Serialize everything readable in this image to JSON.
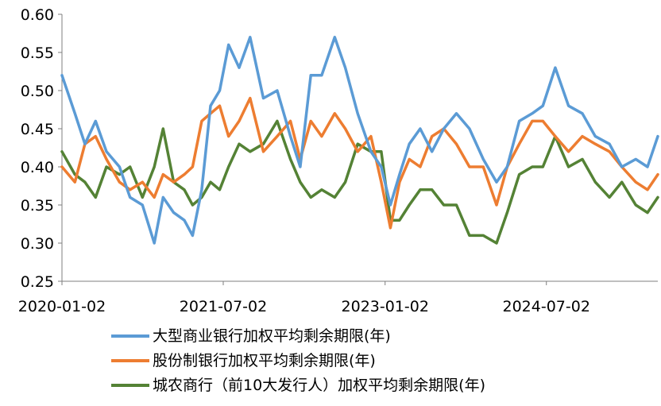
{
  "chart_data": {
    "type": "line",
    "title": "",
    "xlabel": "",
    "ylabel": "",
    "ylim": [
      0.25,
      0.6
    ],
    "y_ticks": [
      "0.60",
      "0.55",
      "0.50",
      "0.45",
      "0.40",
      "0.35",
      "0.30",
      "0.25"
    ],
    "x_ticks": [
      "2020-01-02",
      "2021-07-02",
      "2023-01-02",
      "2024-07-02"
    ],
    "xlim": [
      "2020-01-02",
      "2025-07-15"
    ],
    "grid": false,
    "legend_position": "bottom",
    "series": [
      {
        "name": "大型商业银行加权平均剩余期限(年)",
        "color": "#5B9BD5",
        "points": [
          [
            "2020-01-02",
            0.52
          ],
          [
            "2020-02-15",
            0.47
          ],
          [
            "2020-03-20",
            0.43
          ],
          [
            "2020-04-25",
            0.46
          ],
          [
            "2020-06-01",
            0.42
          ],
          [
            "2020-07-15",
            0.4
          ],
          [
            "2020-08-20",
            0.36
          ],
          [
            "2020-10-01",
            0.35
          ],
          [
            "2020-11-10",
            0.3
          ],
          [
            "2020-12-10",
            0.36
          ],
          [
            "2021-01-15",
            0.34
          ],
          [
            "2021-02-20",
            0.33
          ],
          [
            "2021-03-20",
            0.31
          ],
          [
            "2021-04-20",
            0.37
          ],
          [
            "2021-05-20",
            0.48
          ],
          [
            "2021-06-20",
            0.5
          ],
          [
            "2021-07-20",
            0.56
          ],
          [
            "2021-08-25",
            0.53
          ],
          [
            "2021-10-01",
            0.57
          ],
          [
            "2021-11-15",
            0.49
          ],
          [
            "2022-01-01",
            0.5
          ],
          [
            "2022-02-15",
            0.44
          ],
          [
            "2022-03-20",
            0.4
          ],
          [
            "2022-04-25",
            0.52
          ],
          [
            "2022-06-01",
            0.52
          ],
          [
            "2022-07-15",
            0.57
          ],
          [
            "2022-08-20",
            0.53
          ],
          [
            "2022-10-01",
            0.47
          ],
          [
            "2022-11-15",
            0.42
          ],
          [
            "2022-12-20",
            0.4
          ],
          [
            "2023-01-20",
            0.35
          ],
          [
            "2023-02-20",
            0.39
          ],
          [
            "2023-03-25",
            0.43
          ],
          [
            "2023-05-01",
            0.45
          ],
          [
            "2023-06-10",
            0.42
          ],
          [
            "2023-07-20",
            0.45
          ],
          [
            "2023-09-01",
            0.47
          ],
          [
            "2023-10-15",
            0.45
          ],
          [
            "2023-12-01",
            0.41
          ],
          [
            "2024-01-15",
            0.38
          ],
          [
            "2024-02-20",
            0.4
          ],
          [
            "2024-04-01",
            0.46
          ],
          [
            "2024-05-15",
            0.47
          ],
          [
            "2024-06-20",
            0.48
          ],
          [
            "2024-08-01",
            0.53
          ],
          [
            "2024-09-15",
            0.48
          ],
          [
            "2024-11-01",
            0.47
          ],
          [
            "2024-12-15",
            0.44
          ],
          [
            "2025-02-01",
            0.43
          ],
          [
            "2025-03-15",
            0.4
          ],
          [
            "2025-05-01",
            0.41
          ],
          [
            "2025-06-10",
            0.4
          ],
          [
            "2025-07-15",
            0.44
          ]
        ]
      },
      {
        "name": "股份制银行加权平均剩余期限(年)",
        "color": "#ED7D31",
        "points": [
          [
            "2020-01-02",
            0.4
          ],
          [
            "2020-02-15",
            0.38
          ],
          [
            "2020-03-20",
            0.43
          ],
          [
            "2020-04-25",
            0.44
          ],
          [
            "2020-06-01",
            0.41
          ],
          [
            "2020-07-15",
            0.38
          ],
          [
            "2020-08-20",
            0.37
          ],
          [
            "2020-10-01",
            0.38
          ],
          [
            "2020-11-10",
            0.36
          ],
          [
            "2020-12-10",
            0.39
          ],
          [
            "2021-01-15",
            0.38
          ],
          [
            "2021-02-20",
            0.39
          ],
          [
            "2021-03-20",
            0.4
          ],
          [
            "2021-04-20",
            0.46
          ],
          [
            "2021-05-20",
            0.47
          ],
          [
            "2021-06-20",
            0.48
          ],
          [
            "2021-07-20",
            0.44
          ],
          [
            "2021-08-25",
            0.46
          ],
          [
            "2021-10-01",
            0.49
          ],
          [
            "2021-11-15",
            0.42
          ],
          [
            "2022-01-01",
            0.44
          ],
          [
            "2022-02-15",
            0.46
          ],
          [
            "2022-03-20",
            0.41
          ],
          [
            "2022-04-25",
            0.46
          ],
          [
            "2022-06-01",
            0.44
          ],
          [
            "2022-07-15",
            0.47
          ],
          [
            "2022-08-20",
            0.45
          ],
          [
            "2022-10-01",
            0.42
          ],
          [
            "2022-11-15",
            0.44
          ],
          [
            "2022-12-20",
            0.38
          ],
          [
            "2023-01-20",
            0.32
          ],
          [
            "2023-02-20",
            0.38
          ],
          [
            "2023-03-25",
            0.41
          ],
          [
            "2023-05-01",
            0.4
          ],
          [
            "2023-06-10",
            0.44
          ],
          [
            "2023-07-20",
            0.45
          ],
          [
            "2023-09-01",
            0.43
          ],
          [
            "2023-10-15",
            0.4
          ],
          [
            "2023-12-01",
            0.4
          ],
          [
            "2024-01-15",
            0.35
          ],
          [
            "2024-02-20",
            0.4
          ],
          [
            "2024-04-01",
            0.43
          ],
          [
            "2024-05-15",
            0.46
          ],
          [
            "2024-06-20",
            0.46
          ],
          [
            "2024-08-01",
            0.44
          ],
          [
            "2024-09-15",
            0.42
          ],
          [
            "2024-11-01",
            0.44
          ],
          [
            "2024-12-15",
            0.43
          ],
          [
            "2025-02-01",
            0.42
          ],
          [
            "2025-03-15",
            0.4
          ],
          [
            "2025-05-01",
            0.38
          ],
          [
            "2025-06-10",
            0.37
          ],
          [
            "2025-07-15",
            0.39
          ]
        ]
      },
      {
        "name": "城农商行（前10大发行人）加权平均剩余期限(年)",
        "color": "#548235",
        "points": [
          [
            "2020-01-02",
            0.42
          ],
          [
            "2020-02-15",
            0.39
          ],
          [
            "2020-03-20",
            0.38
          ],
          [
            "2020-04-25",
            0.36
          ],
          [
            "2020-06-01",
            0.4
          ],
          [
            "2020-07-15",
            0.39
          ],
          [
            "2020-08-20",
            0.4
          ],
          [
            "2020-10-01",
            0.36
          ],
          [
            "2020-11-10",
            0.4
          ],
          [
            "2020-12-10",
            0.45
          ],
          [
            "2021-01-15",
            0.38
          ],
          [
            "2021-02-20",
            0.37
          ],
          [
            "2021-03-20",
            0.35
          ],
          [
            "2021-04-20",
            0.36
          ],
          [
            "2021-05-20",
            0.38
          ],
          [
            "2021-06-20",
            0.37
          ],
          [
            "2021-07-20",
            0.4
          ],
          [
            "2021-08-25",
            0.43
          ],
          [
            "2021-10-01",
            0.42
          ],
          [
            "2021-11-15",
            0.43
          ],
          [
            "2022-01-01",
            0.46
          ],
          [
            "2022-02-15",
            0.41
          ],
          [
            "2022-03-20",
            0.38
          ],
          [
            "2022-04-25",
            0.36
          ],
          [
            "2022-06-01",
            0.37
          ],
          [
            "2022-07-15",
            0.36
          ],
          [
            "2022-08-20",
            0.38
          ],
          [
            "2022-10-01",
            0.43
          ],
          [
            "2022-11-15",
            0.42
          ],
          [
            "2022-12-20",
            0.42
          ],
          [
            "2023-01-20",
            0.33
          ],
          [
            "2023-02-20",
            0.33
          ],
          [
            "2023-03-25",
            0.35
          ],
          [
            "2023-05-01",
            0.37
          ],
          [
            "2023-06-10",
            0.37
          ],
          [
            "2023-07-20",
            0.35
          ],
          [
            "2023-09-01",
            0.35
          ],
          [
            "2023-10-15",
            0.31
          ],
          [
            "2023-12-01",
            0.31
          ],
          [
            "2024-01-15",
            0.3
          ],
          [
            "2024-02-20",
            0.34
          ],
          [
            "2024-04-01",
            0.39
          ],
          [
            "2024-05-15",
            0.4
          ],
          [
            "2024-06-20",
            0.4
          ],
          [
            "2024-08-01",
            0.44
          ],
          [
            "2024-09-15",
            0.4
          ],
          [
            "2024-11-01",
            0.41
          ],
          [
            "2024-12-15",
            0.38
          ],
          [
            "2025-02-01",
            0.36
          ],
          [
            "2025-03-15",
            0.38
          ],
          [
            "2025-05-01",
            0.35
          ],
          [
            "2025-06-10",
            0.34
          ],
          [
            "2025-07-15",
            0.36
          ]
        ]
      }
    ]
  }
}
